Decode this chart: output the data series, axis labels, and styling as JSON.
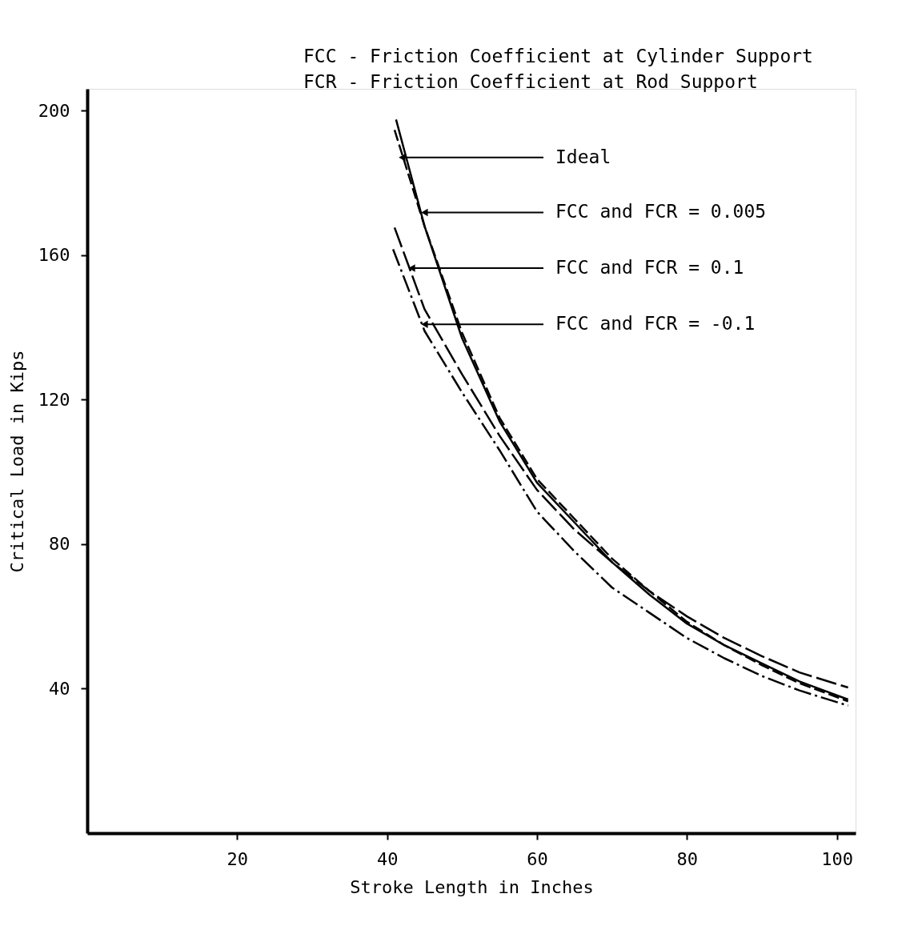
{
  "chart_data": {
    "type": "line",
    "xlabel": "Stroke Length in Inches",
    "ylabel": "Critical Load in Kips",
    "xlim": [
      0,
      102.5
    ],
    "ylim": [
      0,
      206
    ],
    "xticks": [
      20,
      40,
      60,
      80,
      100
    ],
    "yticks": [
      40,
      80,
      120,
      160,
      200
    ],
    "grid": false,
    "series": [
      {
        "color": "#000000",
        "line_style": "solid",
        "x": [
          41.2,
          45,
          50,
          55,
          60,
          65,
          70,
          75,
          80,
          85,
          90,
          95,
          101.5
        ],
        "values": [
          197.5,
          168,
          137,
          114,
          97,
          86,
          75,
          66,
          58,
          52,
          47,
          42,
          37
        ]
      },
      {
        "color": "#000000",
        "line_style": "dashed",
        "x": [
          41,
          45,
          50,
          55,
          60,
          65,
          70,
          75,
          80,
          85,
          90,
          95,
          101.5
        ],
        "values": [
          194.6,
          168,
          138.5,
          115,
          98,
          87,
          76,
          67,
          58.5,
          52,
          46.5,
          41.5,
          36.5
        ]
      },
      {
        "color": "#000000",
        "line_style": "longdash",
        "x": [
          41,
          45,
          50,
          55,
          60,
          65,
          70,
          75,
          80,
          85,
          90,
          95,
          101.5
        ],
        "values": [
          167.6,
          145,
          127,
          110,
          95,
          84,
          75,
          67,
          60,
          54,
          49,
          44.5,
          40.3
        ]
      },
      {
        "color": "#000000",
        "line_style": "dashdot",
        "x": [
          40.8,
          45,
          50,
          55,
          60,
          65,
          70,
          75,
          80,
          85,
          90,
          95,
          101.5
        ],
        "values": [
          161.6,
          139,
          122,
          106,
          89,
          78,
          68,
          61,
          54,
          48.4,
          43.5,
          39.5,
          35.3
        ]
      }
    ],
    "annotations": [
      "FCC - Friction Coefficient at Cylinder Support",
      "FCR - Friction Coefficient at Rod Support",
      {
        "text": "Ideal",
        "x": 42,
        "y": 187
      },
      {
        "text": "FCC and FCR = 0.005",
        "x": 45,
        "y": 171.8
      },
      {
        "text": "FCC and FCR = 0.1",
        "x": 43.3,
        "y": 156.4
      },
      {
        "text": "FCC and FCR = -0.1",
        "x": 45,
        "y": 140.8
      }
    ]
  }
}
